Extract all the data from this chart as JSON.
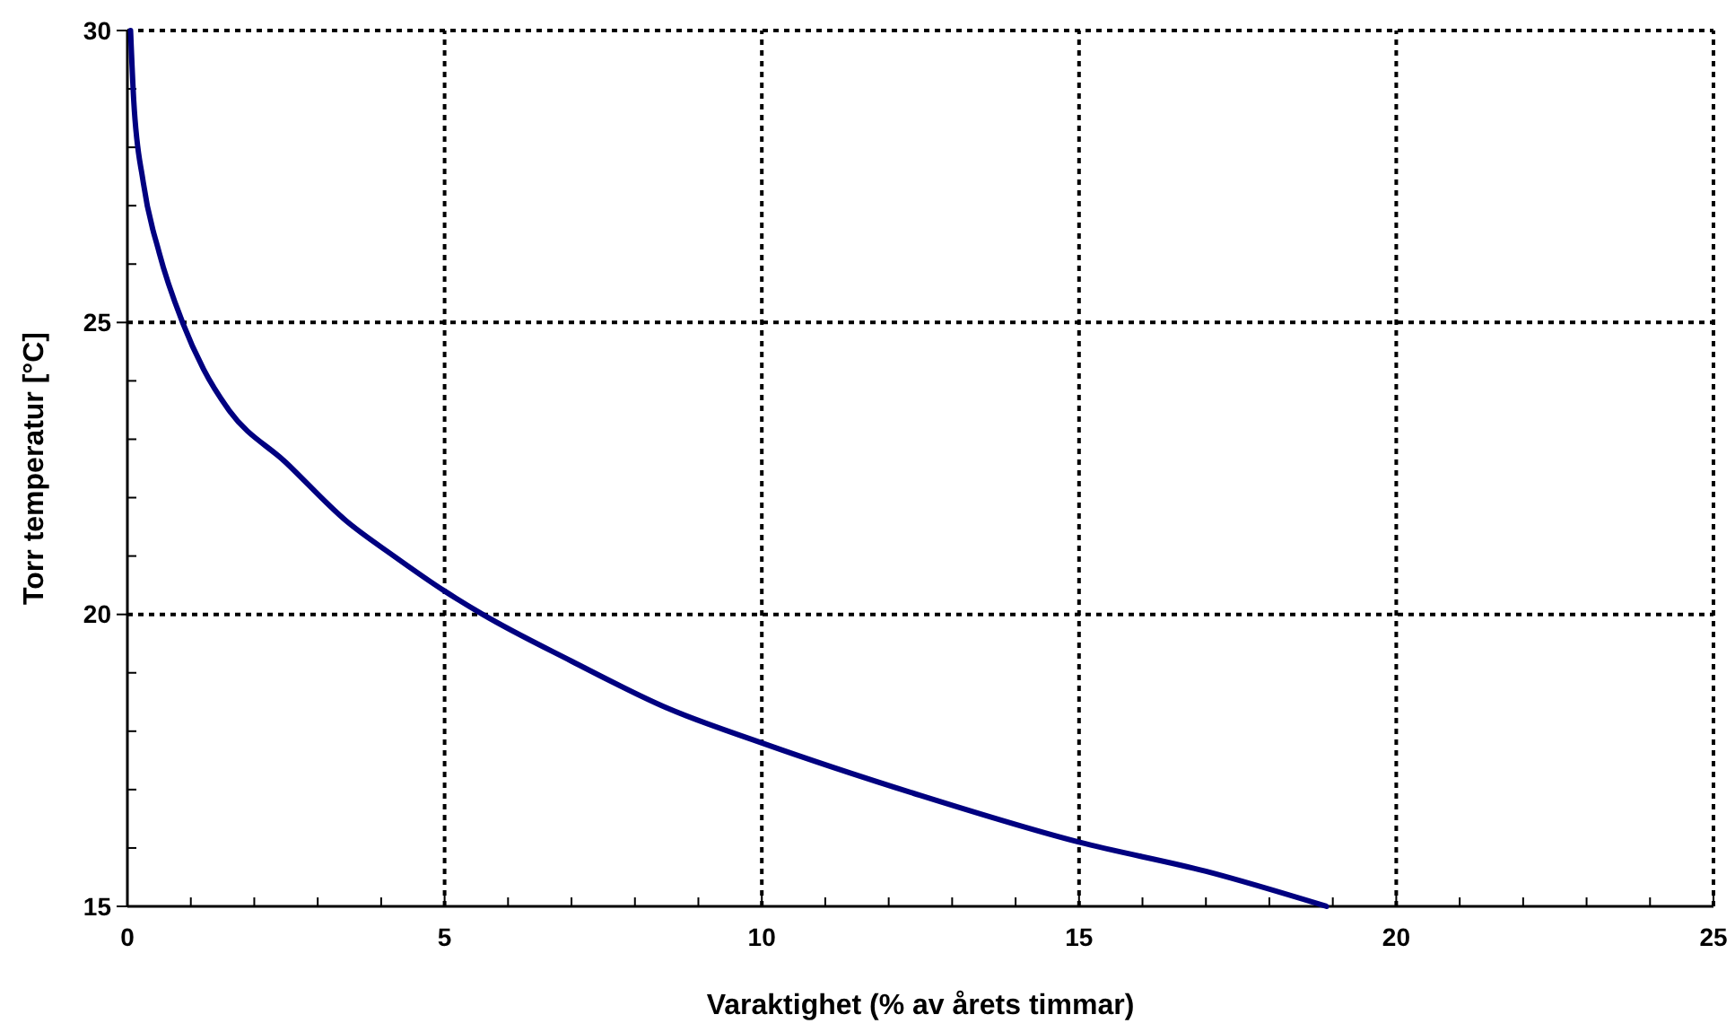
{
  "chart_data": {
    "type": "line",
    "xlabel": "Varaktighet (% av årets timmar)",
    "ylabel": "Torr temperatur [°C]",
    "xlim": [
      0,
      25
    ],
    "ylim": [
      15,
      30
    ],
    "xticks": [
      0,
      {
        "value": 1,
        "label": null
      },
      {
        "value": 2,
        "label": null
      },
      {
        "value": 3,
        "label": null
      },
      {
        "value": 4,
        "label": null
      },
      5,
      {
        "value": 6,
        "label": null
      },
      {
        "value": 7,
        "label": null
      },
      {
        "value": 8,
        "label": null
      },
      {
        "value": 9,
        "label": null
      },
      10,
      {
        "value": 11,
        "label": null
      },
      {
        "value": 12,
        "label": null
      },
      {
        "value": 13,
        "label": null
      },
      {
        "value": 14,
        "label": null
      },
      15,
      {
        "value": 16,
        "label": null
      },
      {
        "value": 17,
        "label": null
      },
      {
        "value": 18,
        "label": null
      },
      {
        "value": 19,
        "label": null
      },
      20,
      {
        "value": 21,
        "label": null
      },
      {
        "value": 22,
        "label": null
      },
      {
        "value": 23,
        "label": null
      },
      {
        "value": 24,
        "label": null
      },
      25
    ],
    "yticks": [
      15,
      {
        "value": 16,
        "label": null
      },
      {
        "value": 17,
        "label": null
      },
      {
        "value": 18,
        "label": null
      },
      {
        "value": 19,
        "label": null
      },
      20,
      {
        "value": 21,
        "label": null
      },
      {
        "value": 22,
        "label": null
      },
      {
        "value": 23,
        "label": null
      },
      {
        "value": 24,
        "label": null
      },
      25,
      {
        "value": 26,
        "label": null
      },
      {
        "value": 27,
        "label": null
      },
      {
        "value": 28,
        "label": null
      },
      {
        "value": 29,
        "label": null
      },
      30
    ],
    "grid": true,
    "marker": "none",
    "line_style": "solid",
    "series": [
      {
        "color": "#000080",
        "x": [
          0.05,
          0.1,
          0.25,
          0.5,
          0.87,
          1.2,
          1.6,
          2.5,
          3.45,
          4.2,
          5,
          5.6,
          7,
          8.5,
          10,
          12.5,
          15,
          17,
          18.9
        ],
        "values": [
          30,
          28.8,
          27.4,
          26.2,
          25,
          24.2,
          23.5,
          22.6,
          21.6,
          21,
          20.4,
          20,
          19.2,
          18.4,
          17.8,
          16.9,
          16.1,
          15.6,
          15
        ]
      }
    ]
  }
}
